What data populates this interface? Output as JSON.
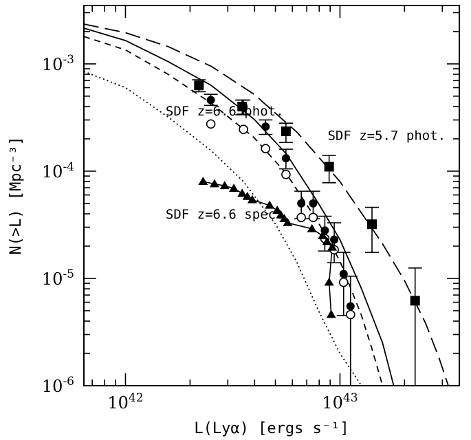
{
  "chart_data": {
    "type": "scatter",
    "title": "",
    "xlabel": "L(Lyα) [ergs s⁻¹]",
    "ylabel": "N(>L) [Mpc⁻³]",
    "xscale": "log",
    "yscale": "log",
    "xlim": [
      6.4e+41,
      3.6e+43
    ],
    "ylim": [
      1e-06,
      0.0035
    ],
    "grid": false,
    "x_ticks": [
      {
        "value": 1e+42,
        "base": "10",
        "exp": "42"
      },
      {
        "value": 1e+43,
        "base": "10",
        "exp": "43"
      }
    ],
    "y_ticks": [
      {
        "value": 0.001,
        "base": "10",
        "exp": "-3"
      },
      {
        "value": 0.0001,
        "base": "10",
        "exp": "-4"
      },
      {
        "value": 1e-05,
        "base": "10",
        "exp": "-5"
      },
      {
        "value": 1e-06,
        "base": "10",
        "exp": "-6"
      }
    ],
    "annotations": [
      {
        "text": "SDF z=6.6 phot.",
        "x": 2.9e+42,
        "y": 0.00033
      },
      {
        "text": "SDF z=5.7 phot.",
        "x": 1.65e+43,
        "y": 0.000195
      },
      {
        "text": "SDF z=6.6 spec.",
        "x": 2.9e+42,
        "y": 3.6e-05
      }
    ],
    "series": [
      {
        "label": "SDF z=5.7 phot.",
        "marker": "filled-square",
        "points": [
          {
            "x": 2.2e+42,
            "y": 0.00063,
            "err_lo": 0.00055,
            "err_hi": 0.00071
          },
          {
            "x": 3.5e+42,
            "y": 0.0004,
            "err_lo": 0.000335,
            "err_hi": 0.00046
          },
          {
            "x": 5.6e+42,
            "y": 0.000235,
            "err_lo": 0.000185,
            "err_hi": 0.00028
          },
          {
            "x": 8.9e+42,
            "y": 0.00011,
            "err_lo": 7.8e-05,
            "err_hi": 0.00014
          },
          {
            "x": 1.41e+43,
            "y": 3.2e-05,
            "err_lo": 1.75e-05,
            "err_hi": 4.6e-05
          },
          {
            "x": 2.24e+43,
            "y": 6.2e-06,
            "err_lo": 1e-06,
            "err_hi": 1.25e-05
          }
        ]
      },
      {
        "label": "SDF z=6.6 phot. (filled)",
        "marker": "filled-circle",
        "points": [
          {
            "x": 2.5e+42,
            "y": 0.00046,
            "err_lo": 0.00041,
            "err_hi": 0.00052
          },
          {
            "x": 3.55e+42,
            "y": 0.0004,
            "err_lo": 0.00034,
            "err_hi": 0.00046
          },
          {
            "x": 4.5e+42,
            "y": 0.00026,
            "err_lo": 0.00022,
            "err_hi": 0.0003
          },
          {
            "x": 5.6e+42,
            "y": 0.000132,
            "err_lo": 0.000105,
            "err_hi": 0.00016
          },
          {
            "x": 6.6e+42,
            "y": 5e-05,
            "err_lo": 3.6e-05,
            "err_hi": 6.5e-05
          },
          {
            "x": 7.5e+42,
            "y": 5e-05,
            "err_lo": 3.6e-05,
            "err_hi": 6.5e-05
          },
          {
            "x": 8.5e+42,
            "y": 2.8e-05,
            "err_lo": 1.8e-05,
            "err_hi": 3.8e-05
          },
          {
            "x": 9.4e+42,
            "y": 2.3e-05,
            "err_lo": 1.4e-05,
            "err_hi": 3.3e-05
          },
          {
            "x": 1.04e+43,
            "y": 1.1e-05,
            "err_lo": 4.5e-06,
            "err_hi": 1.75e-05
          },
          {
            "x": 1.12e+43,
            "y": 5.5e-06,
            "err_lo": 1e-06,
            "err_hi": 1.05e-05
          }
        ]
      },
      {
        "label": "SDF z=6.6 phot. (open)",
        "marker": "open-circle",
        "points": [
          {
            "x": 2.5e+42,
            "y": 0.000275
          },
          {
            "x": 3.55e+42,
            "y": 0.000245
          },
          {
            "x": 4.5e+42,
            "y": 0.000162
          },
          {
            "x": 5.6e+42,
            "y": 9.3e-05
          },
          {
            "x": 6.6e+42,
            "y": 3.7e-05
          },
          {
            "x": 7.5e+42,
            "y": 3.7e-05
          },
          {
            "x": 8.5e+42,
            "y": 2.35e-05
          },
          {
            "x": 9.4e+42,
            "y": 1.85e-05
          },
          {
            "x": 1.04e+43,
            "y": 9.2e-06
          },
          {
            "x": 1.12e+43,
            "y": 4.6e-06
          }
        ]
      },
      {
        "label": "SDF z=6.6 spec.",
        "marker": "filled-triangle",
        "connected": true,
        "points": [
          {
            "x": 2.3e+42,
            "y": 8e-05
          },
          {
            "x": 2.6e+42,
            "y": 7.6e-05
          },
          {
            "x": 2.9e+42,
            "y": 7.3e-05
          },
          {
            "x": 3.2e+42,
            "y": 6.9e-05
          },
          {
            "x": 3.5e+42,
            "y": 6.2e-05
          },
          {
            "x": 3.7e+42,
            "y": 5.8e-05
          },
          {
            "x": 3.9e+42,
            "y": 5.4e-05
          },
          {
            "x": 4.7e+42,
            "y": 4.8e-05
          },
          {
            "x": 5.1e+42,
            "y": 4.3e-05
          },
          {
            "x": 5.3e+42,
            "y": 3.9e-05
          },
          {
            "x": 5.5e+42,
            "y": 3.6e-05
          },
          {
            "x": 5.7e+42,
            "y": 3.3e-05
          },
          {
            "x": 7.4e+42,
            "y": 2.9e-05
          },
          {
            "x": 8.3e+42,
            "y": 2.5e-05
          },
          {
            "x": 8.7e+42,
            "y": 2.2e-05
          },
          {
            "x": 9.2e+42,
            "y": 1.95e-05
          },
          {
            "x": 8.9e+42,
            "y": 9.2e-06
          },
          {
            "x": 9.1e+42,
            "y": 4.6e-06
          }
        ]
      }
    ],
    "curves": [
      {
        "style": "long-dash",
        "points": [
          [
            6.4e+41,
            0.00235
          ],
          [
            1e+42,
            0.00195
          ],
          [
            1.58e+42,
            0.00145
          ],
          [
            2.51e+42,
            0.00095
          ],
          [
            3.98e+42,
            0.00052
          ],
          [
            6.31e+42,
            0.00023
          ],
          [
            1e+43,
            8e-05
          ],
          [
            1.58e+43,
            2.1e-05
          ],
          [
            2e+43,
            9.5e-06
          ],
          [
            2.51e+43,
            3.8e-06
          ],
          [
            2.9e+43,
            1.8e-06
          ],
          [
            3.2e+43,
            1e-06
          ]
        ]
      },
      {
        "style": "solid",
        "points": [
          [
            6.4e+41,
            0.00215
          ],
          [
            1e+42,
            0.00165
          ],
          [
            1.58e+42,
            0.00105
          ],
          [
            2.51e+42,
            0.00063
          ],
          [
            3.98e+42,
            0.000305
          ],
          [
            5.62e+42,
            0.000145
          ],
          [
            7.94e+42,
            5e-05
          ],
          [
            1e+43,
            2.3e-05
          ],
          [
            1.26e+43,
            8e-06
          ],
          [
            1.58e+43,
            2.5e-06
          ],
          [
            1.78e+43,
            1e-06
          ]
        ]
      },
      {
        "style": "short-dash",
        "points": [
          [
            6.4e+41,
            0.0018
          ],
          [
            1e+42,
            0.00135
          ],
          [
            1.58e+42,
            0.0008
          ],
          [
            2.51e+42,
            0.00043
          ],
          [
            3.98e+42,
            0.000205
          ],
          [
            5.62e+42,
            9.5e-05
          ],
          [
            7.94e+42,
            3.3e-05
          ],
          [
            1e+43,
            1.45e-05
          ],
          [
            1.26e+43,
            4.5e-06
          ],
          [
            1.41e+43,
            2.2e-06
          ],
          [
            1.58e+43,
            1e-06
          ]
        ]
      },
      {
        "style": "dotted",
        "points": [
          [
            6.4e+41,
            0.00085
          ],
          [
            1e+42,
            0.0006
          ],
          [
            1.58e+42,
            0.00032
          ],
          [
            2.51e+42,
            0.000155
          ],
          [
            3.55e+42,
            8e-05
          ],
          [
            5.01e+42,
            3.2e-05
          ],
          [
            6.31e+42,
            1.4e-05
          ],
          [
            7.94e+42,
            5e-06
          ],
          [
            1e+43,
            2e-06
          ],
          [
            1.26e+43,
            1e-06
          ]
        ]
      }
    ]
  }
}
